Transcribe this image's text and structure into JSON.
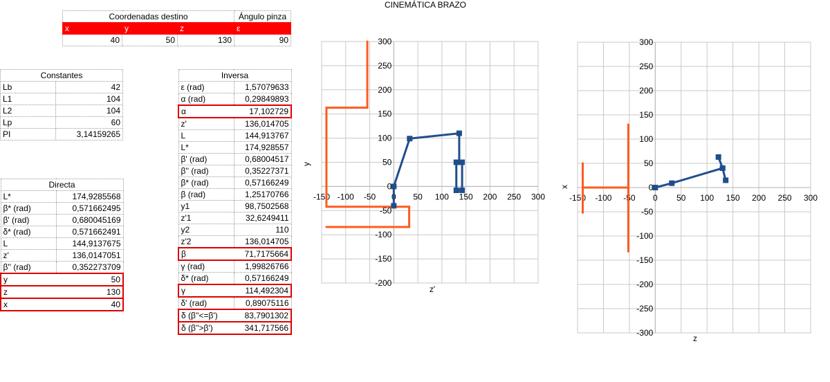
{
  "sheet_title": "CINEMÁTICA BRAZO",
  "destino": {
    "header_coords": "Coordenadas destino",
    "header_angle": "Ángulo pinza",
    "labels": [
      "x",
      "y",
      "z",
      "ε"
    ],
    "values": [
      "40",
      "50",
      "130",
      "90"
    ]
  },
  "constantes": {
    "header": "Constantes",
    "rows": [
      {
        "label": "Lb",
        "value": "42"
      },
      {
        "label": "L1",
        "value": "104"
      },
      {
        "label": "L2",
        "value": "104"
      },
      {
        "label": "Lp",
        "value": "60"
      },
      {
        "label": "PI",
        "value": "3,14159265"
      }
    ]
  },
  "directa": {
    "header": "Directa",
    "rows": [
      {
        "label": "L*",
        "value": "174,9285568"
      },
      {
        "label": "β* (rad)",
        "value": "0,571662495"
      },
      {
        "label": "β' (rad)",
        "value": "0,680045169"
      },
      {
        "label": "δ* (rad)",
        "value": "0,571662491"
      },
      {
        "label": "L",
        "value": "144,9137675"
      },
      {
        "label": "z'",
        "value": "136,0147051"
      },
      {
        "label": "β'' (rad)",
        "value": "0,352273709"
      },
      {
        "label": "y",
        "value": "50",
        "highlight": true
      },
      {
        "label": "z",
        "value": "130",
        "highlight": true
      },
      {
        "label": "x",
        "value": "40",
        "highlight": true
      }
    ]
  },
  "inversa": {
    "header": "Inversa",
    "rows": [
      {
        "label": "ε (rad)",
        "value": "1,57079633"
      },
      {
        "label": "α (rad)",
        "value": "0,29849893"
      },
      {
        "label": "α",
        "value": "17,102729",
        "highlight": true
      },
      {
        "label": "z'",
        "value": "136,014705"
      },
      {
        "label": "L",
        "value": "144,913767"
      },
      {
        "label": "L*",
        "value": "174,928557"
      },
      {
        "label": "β' (rad)",
        "value": "0,68004517"
      },
      {
        "label": "β'' (rad)",
        "value": "0,35227371"
      },
      {
        "label": "β* (rad)",
        "value": "0,57166249"
      },
      {
        "label": "β (rad)",
        "value": "1,25170766"
      },
      {
        "label": "y1",
        "value": "98,7502568"
      },
      {
        "label": "z'1",
        "value": "32,6249411"
      },
      {
        "label": "y2",
        "value": "110"
      },
      {
        "label": "z'2",
        "value": "136,014705"
      },
      {
        "label": "β",
        "value": "71,7175664",
        "highlight": true
      },
      {
        "label": "γ (rad)",
        "value": "1,99826766"
      },
      {
        "label": "δ* (rad)",
        "value": "0,57166249"
      },
      {
        "label": "γ",
        "value": "114,492304",
        "highlight": true
      },
      {
        "label": "δ' (rad)",
        "value": "0,89075116"
      },
      {
        "label": "δ (β''<=β')",
        "value": "83,7901302",
        "highlight": true
      },
      {
        "label": "δ (β''>β')",
        "value": "341,717566",
        "highlight": true
      }
    ]
  },
  "colors": {
    "arm": "#1f4e8c",
    "limits": "#ff5a1f",
    "header_red": "#ff0000",
    "highlight_border": "#dd0000",
    "grid": "#c8c8c8"
  },
  "chart_data": [
    {
      "type": "scatter",
      "title": "",
      "xlabel": "z'",
      "ylabel": "y",
      "xlim": [
        -150,
        300
      ],
      "ylim": [
        -200,
        300
      ],
      "xticks": [
        -150,
        -100,
        -50,
        0,
        50,
        100,
        150,
        200,
        250,
        300
      ],
      "yticks": [
        -200,
        -150,
        -100,
        -50,
        0,
        50,
        100,
        150,
        200,
        250,
        300
      ],
      "grid": true,
      "series": [
        {
          "color": "#ff5a1f",
          "markers": false,
          "x": [
            -55,
            -55,
            -140,
            -140,
            32,
            32,
            -140
          ],
          "y": [
            300,
            163,
            163,
            -42,
            -42,
            -84,
            -84
          ]
        },
        {
          "color": "#1f4e8c",
          "markers": true,
          "x": [
            0,
            0,
            33,
            136,
            136,
            130,
            130,
            142,
            142,
            136
          ],
          "y": [
            -40,
            0,
            99,
            110,
            50,
            50,
            -8,
            -8,
            50,
            50
          ]
        }
      ]
    },
    {
      "type": "scatter",
      "title": "",
      "xlabel": "z",
      "ylabel": "x",
      "xlim": [
        -150,
        300
      ],
      "ylim": [
        -300,
        300
      ],
      "xticks": [
        -150,
        -100,
        -50,
        0,
        50,
        100,
        150,
        200,
        250,
        300
      ],
      "yticks": [
        -300,
        -250,
        -200,
        -150,
        -100,
        -50,
        0,
        50,
        100,
        150,
        200,
        250,
        300
      ],
      "grid": true,
      "series": [
        {
          "color": "#ff5a1f",
          "markers": false,
          "segments": [
            {
              "x": [
                -140,
                -140
              ],
              "y": [
                50,
                -52
              ]
            },
            {
              "x": [
                -140,
                -52
              ],
              "y": [
                0,
                0
              ]
            },
            {
              "x": [
                -52,
                -52
              ],
              "y": [
                130,
                -132
              ]
            }
          ]
        },
        {
          "color": "#1f4e8c",
          "markers": true,
          "x": [
            0,
            32,
            130,
            122,
            130,
            136
          ],
          "y": [
            0,
            9,
            40,
            63,
            40,
            15
          ]
        }
      ]
    }
  ]
}
